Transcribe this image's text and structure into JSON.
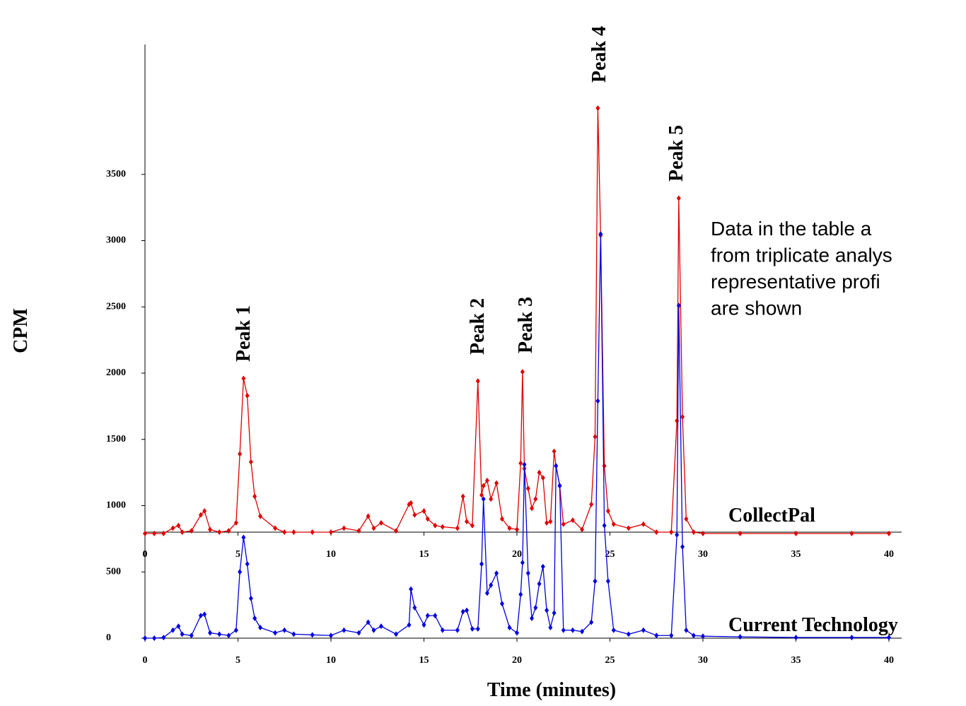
{
  "chart_data": {
    "type": "line",
    "y_label": "CPM",
    "x_label": "Time (minutes)",
    "x": [
      0,
      0.5,
      1,
      1.5,
      1.8,
      2,
      2.5,
      3,
      3.2,
      3.5,
      4,
      4.5,
      4.9,
      5.1,
      5.3,
      5.5,
      5.7,
      5.9,
      6.2,
      7,
      7.5,
      8,
      9,
      10,
      10.7,
      11.5,
      12,
      12.3,
      12.7,
      13.5,
      14.2,
      14.3,
      14.5,
      15,
      15.2,
      15.6,
      16,
      16.8,
      17.1,
      17.3,
      17.6,
      17.9,
      18.1,
      18.2,
      18.4,
      18.6,
      18.9,
      19.2,
      19.6,
      20,
      20.2,
      20.3,
      20.4,
      20.6,
      20.8,
      21,
      21.2,
      21.4,
      21.6,
      21.8,
      22,
      22.1,
      22.3,
      22.5,
      23,
      23.5,
      24,
      24.2,
      24.35,
      24.5,
      24.7,
      24.9,
      25.2,
      26,
      26.8,
      27.5,
      28.3,
      28.6,
      28.7,
      28.9,
      29.1,
      29.5,
      30,
      32,
      35,
      38,
      40
    ],
    "series": [
      {
        "name": "CollectPal",
        "color": "#e00000",
        "values": [
          790,
          790,
          790,
          830,
          850,
          800,
          810,
          930,
          960,
          820,
          800,
          810,
          870,
          1390,
          1960,
          1830,
          1330,
          1070,
          920,
          830,
          800,
          800,
          800,
          800,
          830,
          810,
          920,
          830,
          870,
          810,
          1010,
          1020,
          930,
          960,
          900,
          850,
          840,
          830,
          1070,
          880,
          850,
          1940,
          1080,
          1150,
          1190,
          1050,
          1170,
          900,
          830,
          820,
          1320,
          2010,
          1280,
          1130,
          980,
          1050,
          1250,
          1210,
          870,
          880,
          1410,
          1300,
          1150,
          860,
          890,
          820,
          1010,
          1520,
          4000,
          3040,
          1300,
          960,
          860,
          830,
          860,
          800,
          800,
          1640,
          3320,
          1670,
          900,
          800,
          790,
          790,
          790,
          790,
          790
        ]
      },
      {
        "name": "Current Technology",
        "color": "#0000e0",
        "values": [
          0,
          0,
          5,
          60,
          90,
          30,
          20,
          170,
          180,
          40,
          30,
          20,
          60,
          500,
          760,
          560,
          300,
          150,
          80,
          40,
          60,
          30,
          25,
          20,
          60,
          40,
          120,
          60,
          90,
          30,
          100,
          370,
          230,
          100,
          170,
          170,
          60,
          60,
          200,
          210,
          70,
          70,
          560,
          1050,
          340,
          400,
          490,
          260,
          80,
          40,
          330,
          570,
          1310,
          490,
          150,
          230,
          410,
          540,
          210,
          80,
          190,
          1300,
          1150,
          60,
          60,
          50,
          120,
          430,
          1790,
          3050,
          850,
          430,
          60,
          30,
          60,
          20,
          20,
          780,
          2510,
          690,
          60,
          20,
          15,
          10,
          5,
          5,
          5
        ]
      }
    ],
    "xlim": [
      0,
      40
    ],
    "xticks": [
      0,
      5,
      10,
      15,
      20,
      25,
      30,
      35,
      40
    ],
    "ylim": [
      0,
      4480
    ],
    "yticks": [
      0,
      500,
      1000,
      1500,
      2000,
      2500,
      3000,
      3500
    ],
    "x2_axis_at": 800,
    "peak_labels": [
      "Peak 1",
      "Peak 2",
      "Peak 3",
      "Peak 4",
      "Peak 5"
    ],
    "note_lines": [
      "Data in the table a",
      "from triplicate analys",
      "representative    profi",
      "are shown"
    ]
  }
}
